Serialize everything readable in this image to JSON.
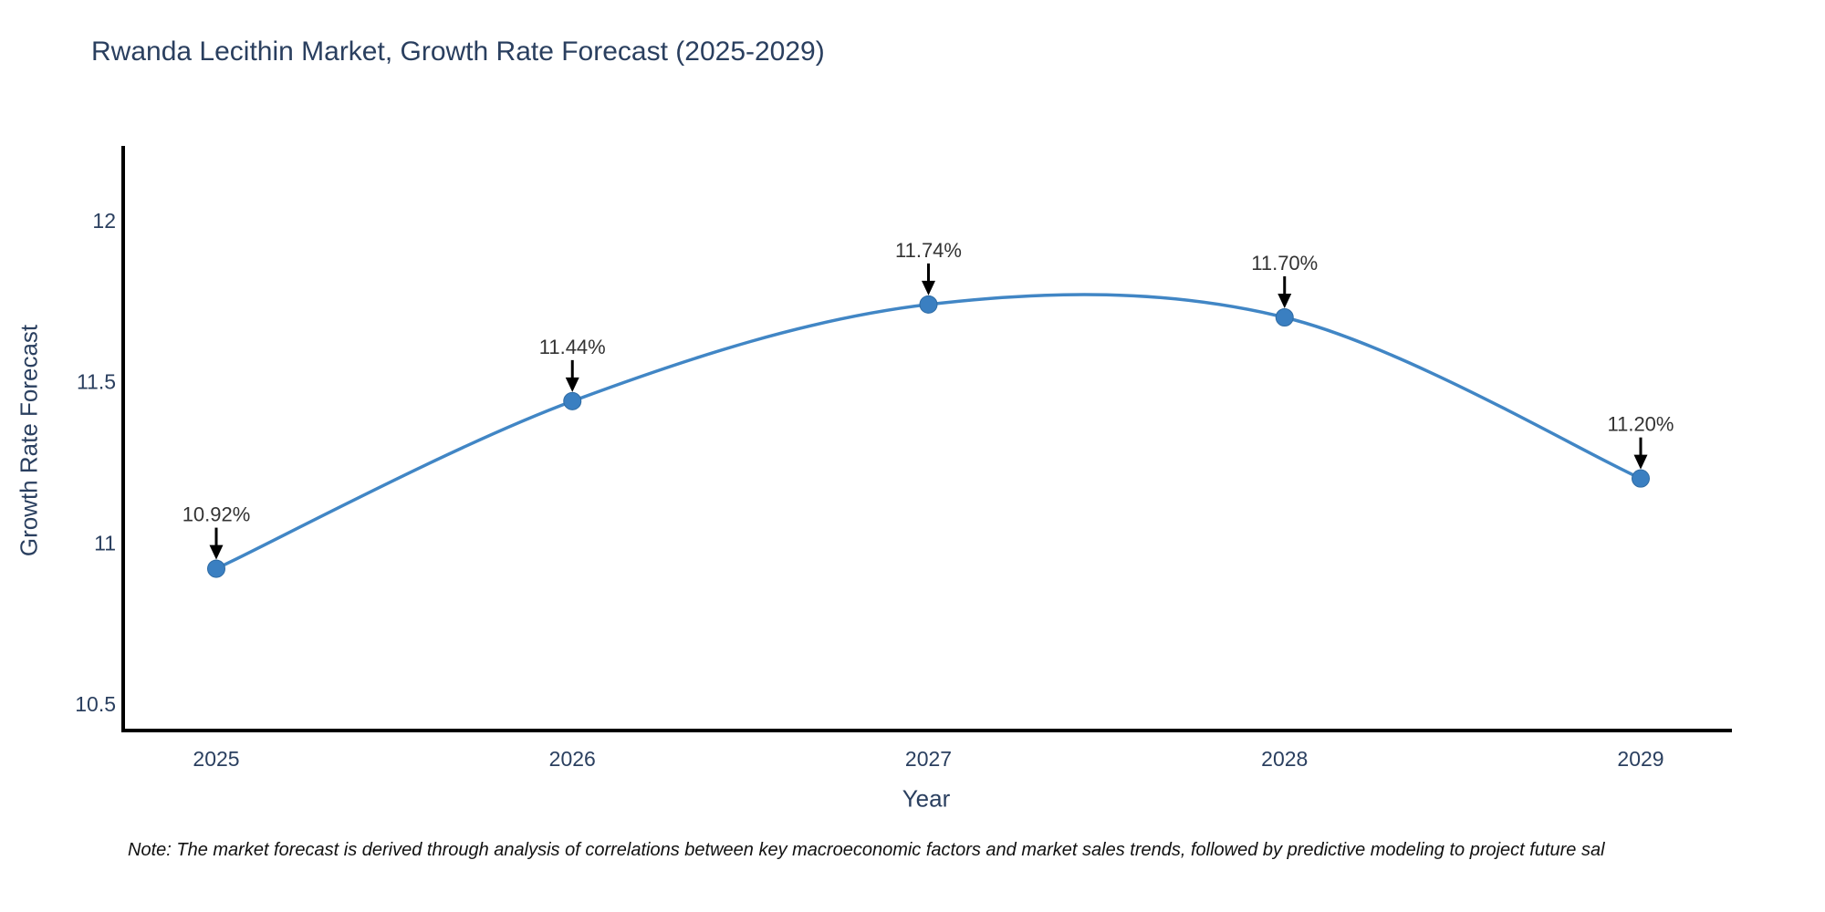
{
  "title": "Rwanda Lecithin Market, Growth Rate Forecast (2025-2029)",
  "note": "Note: The market forecast is derived through analysis of correlations between key macroeconomic factors and market sales trends, followed by predictive modeling to project future sal",
  "chart_data": {
    "type": "line",
    "title": "Rwanda Lecithin Market, Growth Rate Forecast (2025-2029)",
    "xlabel": "Year",
    "ylabel": "Growth Rate Forecast",
    "categories": [
      "2025",
      "2026",
      "2027",
      "2028",
      "2029"
    ],
    "values": [
      10.92,
      11.44,
      11.74,
      11.7,
      11.2
    ],
    "point_labels": [
      "10.92%",
      "11.44%",
      "11.74%",
      "11.70%",
      "11.20%"
    ],
    "yticks": [
      12,
      11.5,
      11,
      10.5
    ],
    "ytick_labels": [
      "12",
      "11.5",
      "11",
      "10.5"
    ],
    "ylim": [
      10.42,
      12.23
    ],
    "grid": false,
    "legend_position": "none",
    "smooth_spline": true,
    "annotation_arrows": true,
    "colors": {
      "line": "#4186c5",
      "marker": "#3a7fc1",
      "marker_edge": "#2f6ba3",
      "axis": "#000000",
      "arrow": "#000000",
      "title_text": "#2a3f5f",
      "tick_text": "#2a3f5f",
      "annotation_text": "#333333",
      "note_text": "#111111",
      "background": "#ffffff"
    }
  }
}
